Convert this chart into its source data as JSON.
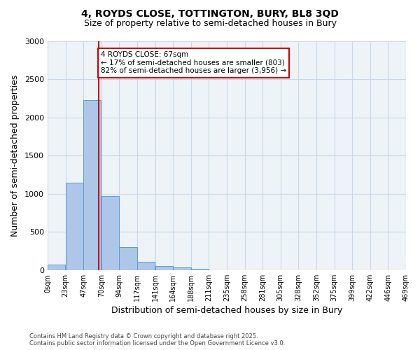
{
  "title_line1": "4, ROYDS CLOSE, TOTTINGTON, BURY, BL8 3QD",
  "title_line2": "Size of property relative to semi-detached houses in Bury",
  "xlabel": "Distribution of semi-detached houses by size in Bury",
  "ylabel": "Number of semi-detached properties",
  "bar_values": [
    70,
    1150,
    2230,
    970,
    305,
    105,
    55,
    35,
    20,
    0,
    0,
    0,
    0,
    0,
    0,
    0,
    0,
    0,
    0,
    0
  ],
  "bin_labels": [
    "0sqm",
    "23sqm",
    "47sqm",
    "70sqm",
    "94sqm",
    "117sqm",
    "141sqm",
    "164sqm",
    "188sqm",
    "211sqm",
    "235sqm",
    "258sqm",
    "281sqm",
    "305sqm",
    "328sqm",
    "352sqm",
    "375sqm",
    "399sqm",
    "422sqm",
    "446sqm",
    "469sqm"
  ],
  "bar_color": "#aec6e8",
  "bar_edge_color": "#5b9bd5",
  "grid_color": "#c8d8e8",
  "background_color": "#eef3f8",
  "vline_x": 67,
  "vline_color": "#cc0000",
  "annotation_text": "4 ROYDS CLOSE: 67sqm\n← 17% of semi-detached houses are smaller (803)\n82% of semi-detached houses are larger (3,956) →",
  "annotation_box_color": "#cc0000",
  "ylim": [
    0,
    3000
  ],
  "yticks": [
    0,
    500,
    1000,
    1500,
    2000,
    2500,
    3000
  ],
  "footnote": "Contains HM Land Registry data © Crown copyright and database right 2025.\nContains public sector information licensed under the Open Government Licence v3.0.",
  "bin_width": 23.5
}
